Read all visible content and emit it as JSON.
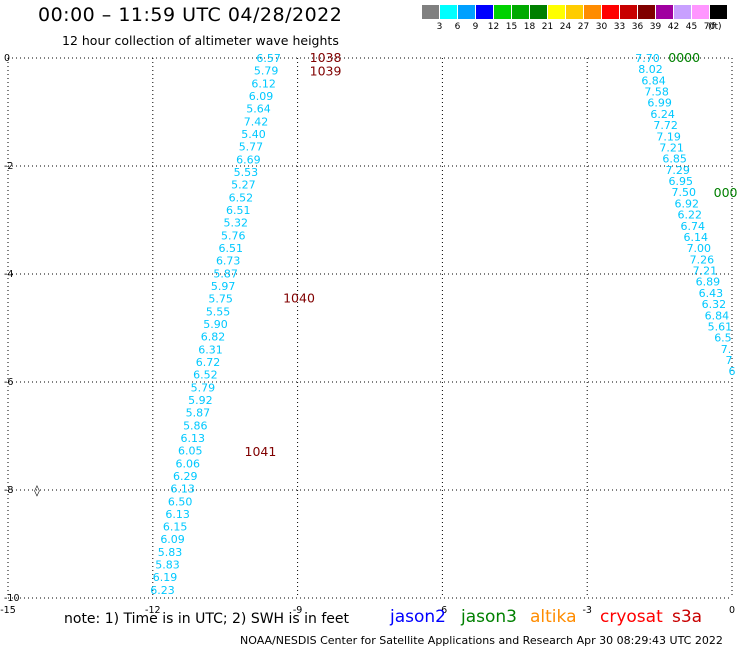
{
  "header": {
    "title": "00:00 – 11:59 UTC 04/28/2022",
    "subtitle": "12 hour collection of altimeter wave heights"
  },
  "colorbar": {
    "unit_label": "(ft)",
    "bins": [
      {
        "label": "3",
        "color": "#808080"
      },
      {
        "label": "6",
        "color": "#00ffff"
      },
      {
        "label": "9",
        "color": "#00a0ff"
      },
      {
        "label": "12",
        "color": "#0000ff"
      },
      {
        "label": "15",
        "color": "#00d200"
      },
      {
        "label": "18",
        "color": "#00aa00"
      },
      {
        "label": "21",
        "color": "#008000"
      },
      {
        "label": "24",
        "color": "#ffff00"
      },
      {
        "label": "27",
        "color": "#ffcc00"
      },
      {
        "label": "30",
        "color": "#ff8c00"
      },
      {
        "label": "33",
        "color": "#ff0000"
      },
      {
        "label": "36",
        "color": "#c80000"
      },
      {
        "label": "39",
        "color": "#800000"
      },
      {
        "label": "42",
        "color": "#a000a0"
      },
      {
        "label": "45",
        "color": "#c8a0ff"
      },
      {
        "label": "70",
        "color": "#ff96ff"
      },
      {
        "label": "",
        "color": "#000000"
      }
    ]
  },
  "footer": {
    "note": "note:  1) Time is in UTC; 2) SWH is in feet",
    "credit": "NOAA/NESDIS Center for Satellite Applications and Research    Apr 30 08:29:43 UTC 2022"
  },
  "satellites": [
    {
      "name": "jason2",
      "color": "#0000ff"
    },
    {
      "name": "jason3",
      "color": "#008000"
    },
    {
      "name": "altika",
      "color": "#ff8c00"
    },
    {
      "name": "cryosat",
      "color": "#ff0000"
    },
    {
      "name": "s3a",
      "color": "#c80000"
    }
  ],
  "chart_data": {
    "type": "scatter",
    "xlim": [
      -15,
      0
    ],
    "ylim": [
      -10,
      0
    ],
    "x_ticks": [
      {
        "value": -15,
        "label": "-15"
      },
      {
        "value": -12,
        "label": "-12"
      },
      {
        "value": -9,
        "label": "-9"
      },
      {
        "value": -6,
        "label": "-6"
      },
      {
        "value": -3,
        "label": "-3"
      },
      {
        "value": 0,
        "label": "0"
      }
    ],
    "y_ticks": [
      {
        "value": 0,
        "label": "0"
      },
      {
        "value": -2,
        "label": "-2"
      },
      {
        "value": -4,
        "label": "-4"
      },
      {
        "value": -6,
        "label": "-6"
      },
      {
        "value": -8,
        "label": "-8"
      },
      {
        "value": -10,
        "label": "-10"
      }
    ],
    "grid": true,
    "value_color": "#00c8ff",
    "tracks": [
      {
        "x_start": -9.6,
        "x_end": -11.8,
        "y_start": 0.0,
        "y_end": -9.85,
        "values": [
          "6.57",
          "5.79",
          "6.12",
          "6.09",
          "5.64",
          "7.42",
          "5.40",
          "5.77",
          "6.69",
          "5.53",
          "5.27",
          "6.52",
          "6.51",
          "5.32",
          "5.76",
          "6.51",
          "6.73",
          "5.87",
          "5.97",
          "5.75",
          "5.55",
          "5.90",
          "6.82",
          "6.31",
          "6.72",
          "6.52",
          "5.79",
          "5.92",
          "5.87",
          "5.86",
          "6.13",
          "6.05",
          "6.06",
          "6.29",
          "6.13",
          "6.50",
          "6.13",
          "6.15",
          "6.09",
          "5.83",
          "5.83",
          "6.19",
          "6.23"
        ]
      },
      {
        "x_start": -1.75,
        "x_end": 0.0,
        "y_start": 0.0,
        "y_end": -5.8,
        "values": [
          "7.70",
          "8.02",
          "6.84",
          "7.58",
          "6.99",
          "6.24",
          "7.72",
          "7.19",
          "7.21",
          "6.85",
          "7.29",
          "6.95",
          "7.50",
          "6.92",
          "6.22",
          "6.74",
          "6.14",
          "7.00",
          "7.26",
          "7.21",
          "6.89",
          "6.43",
          "6.32",
          "6.84",
          "5.61",
          "6.5",
          "7.",
          "7",
          "6"
        ]
      }
    ],
    "time_labels": [
      {
        "text": "1038",
        "x": -8.75,
        "y": 0.0,
        "color": "#800000"
      },
      {
        "text": "1039",
        "x": -8.75,
        "y": -0.25,
        "color": "#800000"
      },
      {
        "text": "1040",
        "x": -9.3,
        "y": -4.45,
        "color": "#800000"
      },
      {
        "text": "1041",
        "x": -10.1,
        "y": -7.3,
        "color": "#800000"
      },
      {
        "text": "0000",
        "x": -1.32,
        "y": 0.0,
        "color": "#008000"
      },
      {
        "text": "000",
        "x": -0.38,
        "y": -2.5,
        "color": "#008000"
      }
    ],
    "markers": [
      {
        "text": "◊",
        "x": -14.4,
        "y": -8.0,
        "color": "#000000"
      }
    ]
  }
}
